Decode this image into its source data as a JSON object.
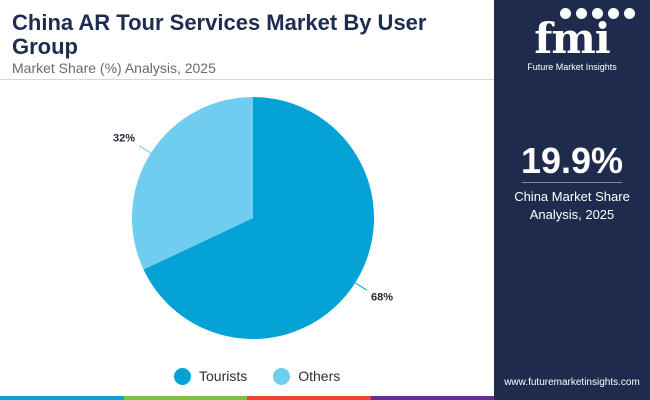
{
  "chart_data": {
    "type": "pie",
    "title": "China AR Tour Services Market By User Group",
    "subtitle": "Market Share (%) Analysis, 2025",
    "slices": [
      {
        "label": "Tourists",
        "value": 68,
        "display": "68%",
        "color": "#05a2d6"
      },
      {
        "label": "Others",
        "value": 32,
        "display": "32%",
        "color": "#6fcdf0"
      }
    ],
    "legend_position": "bottom"
  },
  "sidebar": {
    "logo_text": "fmi",
    "logo_caption": "Future Market Insights",
    "highlight_value": "19.9%",
    "highlight_label_line1": "China Market Share",
    "highlight_label_line2": "Analysis, 2025",
    "url": "www.futuremarketinsights.com",
    "background": "#1e2b4d"
  },
  "bottom_bar_colors": [
    "#0aa0d5",
    "#7bc143",
    "#ef4136",
    "#6a2c8f"
  ]
}
